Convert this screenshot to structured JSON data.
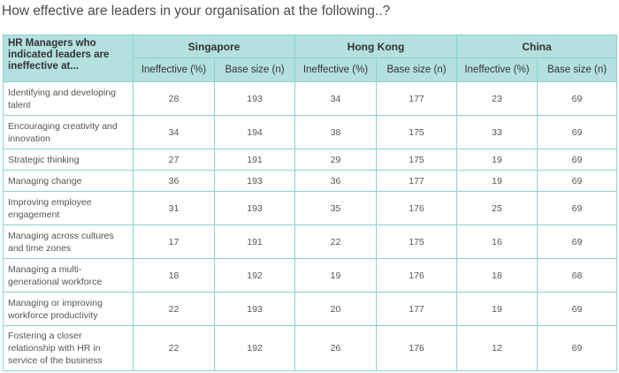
{
  "title": "How effective are leaders in your organisation at the following..?",
  "table": {
    "corner_header": "HR Managers who indicated leaders are ineffective at...",
    "countries": [
      "Singapore",
      "Hong Kong",
      "China"
    ],
    "sub_headers": [
      "Ineffective (%)",
      "Base size (n)"
    ],
    "rows": [
      {
        "label": "Identifying and developing talent",
        "values": [
          "28",
          "193",
          "34",
          "177",
          "23",
          "69"
        ]
      },
      {
        "label": "Encouraging creativity and innovation",
        "values": [
          "34",
          "194",
          "38",
          "175",
          "33",
          "69"
        ]
      },
      {
        "label": "Strategic thinking",
        "values": [
          "27",
          "191",
          "29",
          "175",
          "19",
          "69"
        ]
      },
      {
        "label": "Managing change",
        "values": [
          "36",
          "193",
          "36",
          "177",
          "19",
          "69"
        ]
      },
      {
        "label": "Improving employee engagement",
        "values": [
          "31",
          "193",
          "35",
          "176",
          "25",
          "69"
        ]
      },
      {
        "label": "Managing across cultures and time zones",
        "values": [
          "17",
          "191",
          "22",
          "175",
          "16",
          "69"
        ]
      },
      {
        "label": "Managing a multi-generational workforce",
        "values": [
          "18",
          "192",
          "19",
          "176",
          "18",
          "68"
        ]
      },
      {
        "label": "Managing or improving workforce productivity",
        "values": [
          "22",
          "193",
          "20",
          "177",
          "19",
          "69"
        ]
      },
      {
        "label": "Fostering a closer relationship with HR in service of the business",
        "values": [
          "22",
          "192",
          "26",
          "176",
          "12",
          "69"
        ]
      }
    ]
  }
}
